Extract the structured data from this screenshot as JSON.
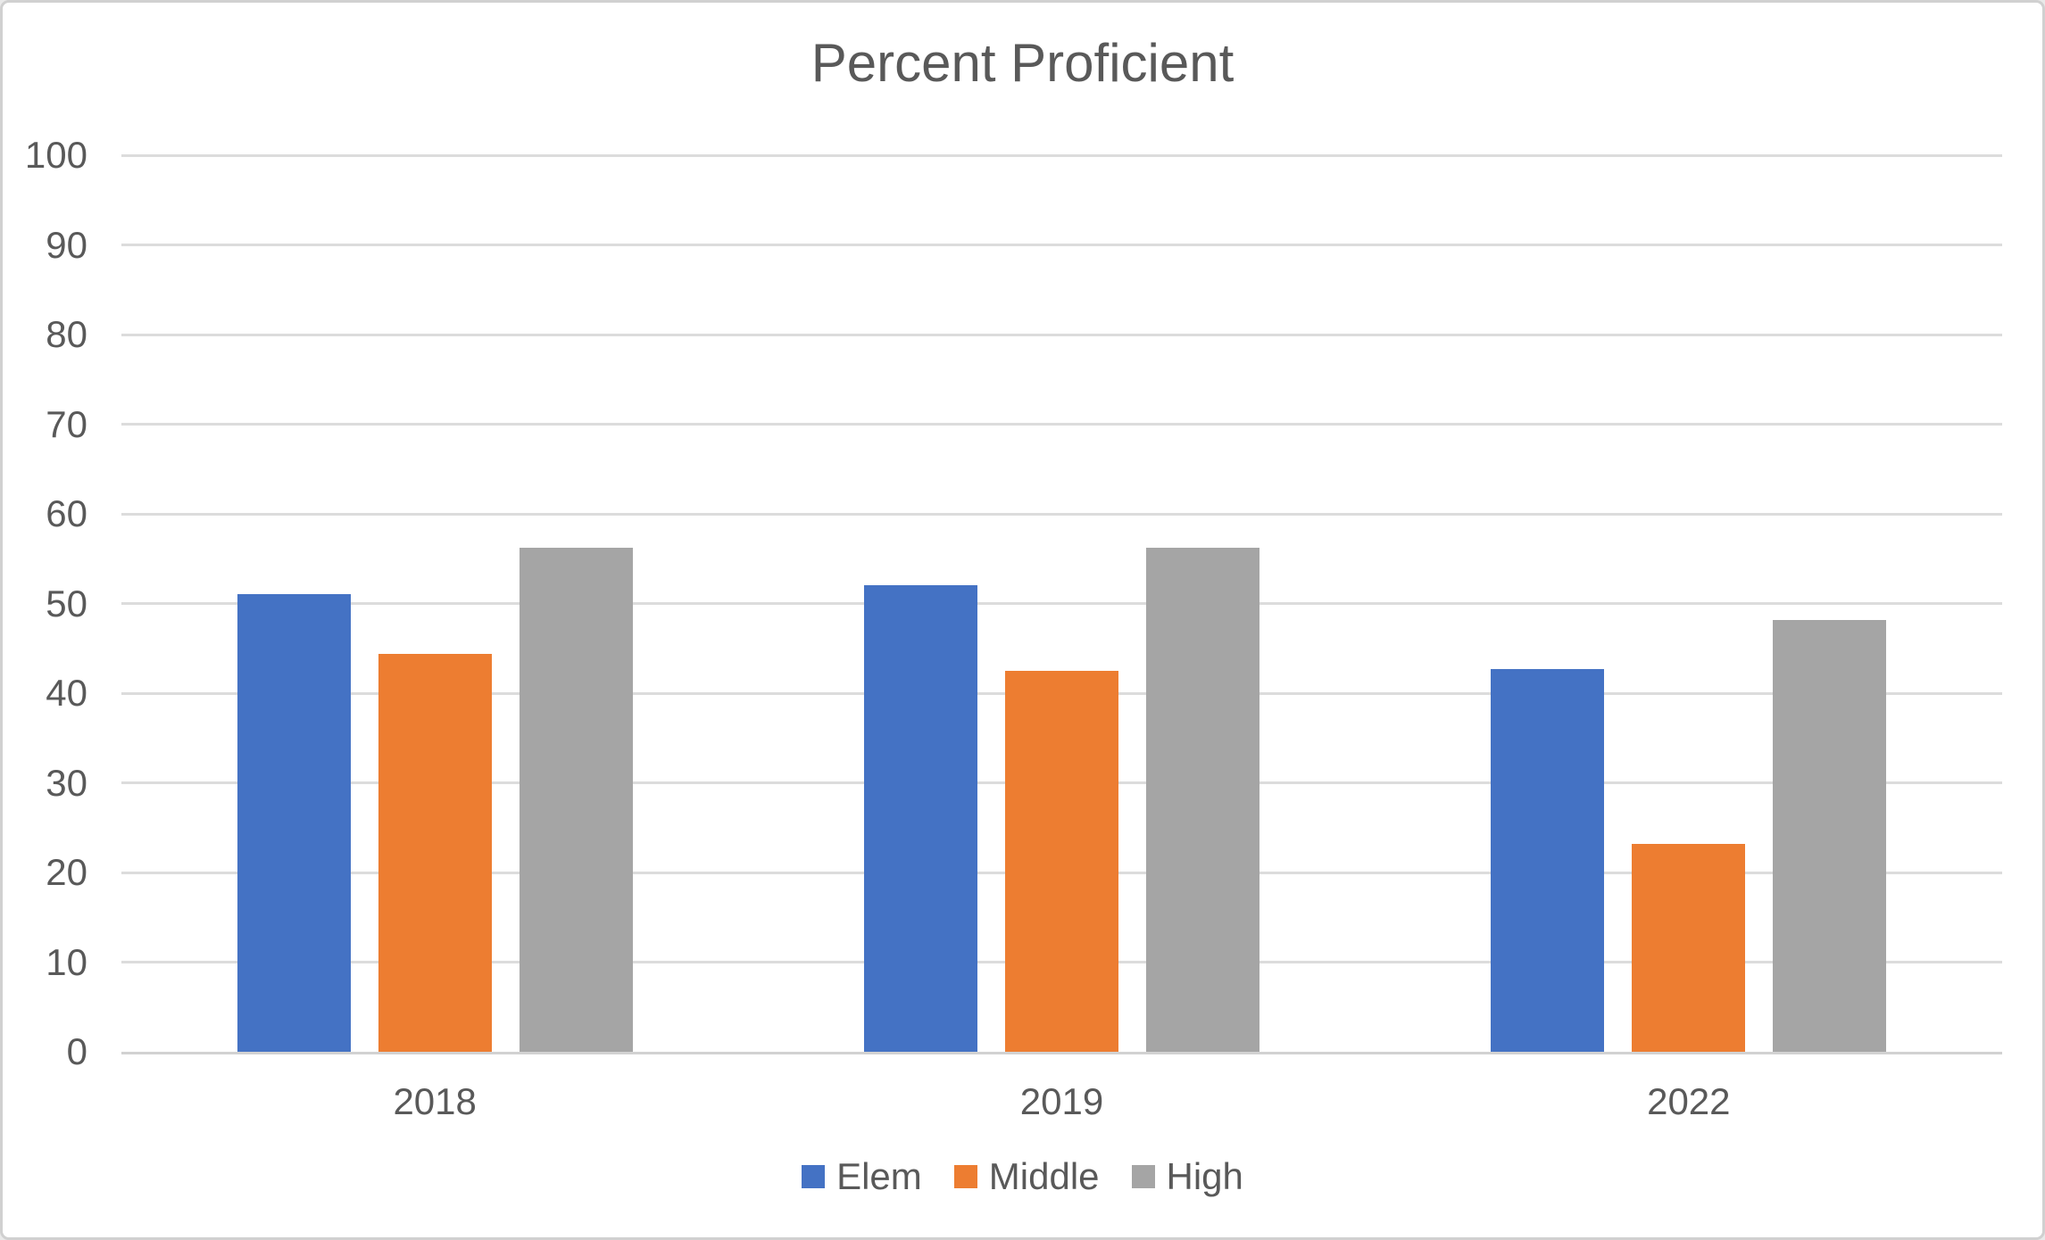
{
  "chart_data": {
    "type": "bar",
    "title": "Percent Proficient",
    "categories": [
      "2018",
      "2019",
      "2022"
    ],
    "series": [
      {
        "name": "Elem",
        "color": "#4472C4",
        "values": [
          51.0,
          52.0,
          42.7
        ]
      },
      {
        "name": "Middle",
        "color": "#ED7D31",
        "values": [
          44.4,
          42.5,
          23.2
        ]
      },
      {
        "name": "High",
        "color": "#A5A5A5",
        "values": [
          56.2,
          56.2,
          48.2
        ]
      }
    ],
    "ylim": [
      0,
      100
    ],
    "ytick_step": 10,
    "ytick_labels": [
      "0",
      "10",
      "20",
      "30",
      "40",
      "50",
      "60",
      "70",
      "80",
      "90",
      "100"
    ],
    "grid": true,
    "legend_position": "bottom",
    "legend_entries": [
      "Elem",
      "Middle",
      "High"
    ]
  },
  "colors": {
    "background": "#FFFFFF",
    "canvas_border": "#D0D0D0",
    "gridline": "#DCDCDC",
    "axis_line": "#D2D2D2",
    "text": "#595959",
    "series_elem": "#4472C4",
    "series_middle": "#ED7D31",
    "series_high": "#A5A5A5"
  }
}
